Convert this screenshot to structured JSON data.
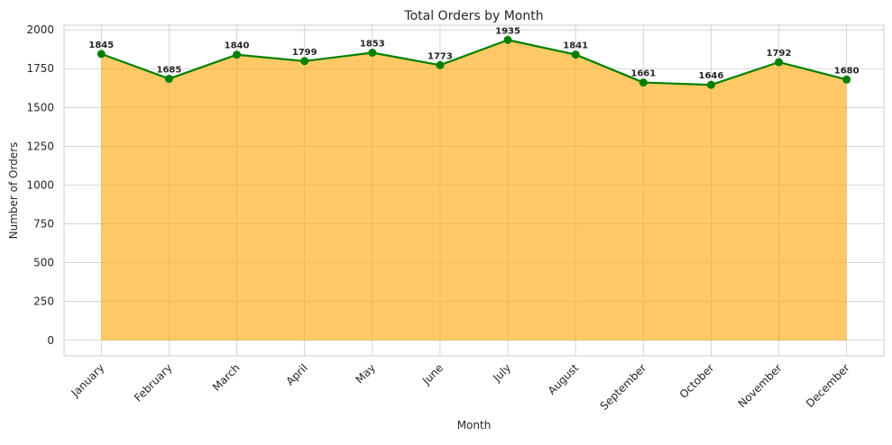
{
  "chart_data": {
    "type": "area",
    "title": "Total Orders by Month",
    "xlabel": "Month",
    "ylabel": "Number of Orders",
    "categories": [
      "January",
      "February",
      "March",
      "April",
      "May",
      "June",
      "July",
      "August",
      "September",
      "October",
      "November",
      "December"
    ],
    "values": [
      1845,
      1685,
      1840,
      1799,
      1853,
      1773,
      1935,
      1841,
      1661,
      1646,
      1792,
      1680
    ],
    "data_labels": [
      "1845",
      "1685",
      "1840",
      "1799",
      "1853",
      "1773",
      "1935",
      "1841",
      "1661",
      "1646",
      "1792",
      "1680"
    ],
    "yticks": [
      0,
      250,
      500,
      750,
      1000,
      1250,
      1500,
      1750,
      2000
    ],
    "ytick_labels": [
      "0",
      "250",
      "500",
      "750",
      "1000",
      "1250",
      "1500",
      "1750",
      "2000"
    ],
    "ylim": [
      -100,
      2030
    ],
    "grid": true,
    "x_tick_rotation": 45,
    "colors": {
      "line": "#008000",
      "marker": "#008000",
      "fill": "#ffa500",
      "grid": "#cccccc",
      "axes_edge": "#cccccc",
      "text": "#262626"
    }
  }
}
